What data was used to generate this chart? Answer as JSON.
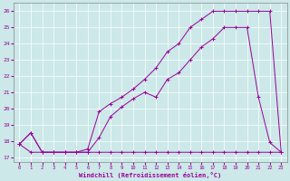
{
  "xlabel": "Windchill (Refroidissement éolien,°C)",
  "bg_color": "#cce8e8",
  "line_color": "#990099",
  "xlim": [
    -0.5,
    23.5
  ],
  "ylim": [
    16.7,
    26.5
  ],
  "yticks": [
    17,
    18,
    19,
    20,
    21,
    22,
    23,
    24,
    25,
    26
  ],
  "xticks": [
    0,
    1,
    2,
    3,
    4,
    5,
    6,
    7,
    8,
    9,
    10,
    11,
    12,
    13,
    14,
    15,
    16,
    17,
    18,
    19,
    20,
    21,
    22,
    23
  ],
  "line1_x": [
    0,
    1,
    2,
    3,
    4,
    5,
    6,
    7,
    8,
    9,
    10,
    11,
    12,
    13,
    14,
    15,
    16,
    17,
    18,
    19,
    20,
    21,
    22,
    23
  ],
  "line1_y": [
    17.8,
    17.3,
    17.3,
    17.3,
    17.3,
    17.3,
    17.3,
    17.3,
    17.3,
    17.3,
    17.3,
    17.3,
    17.3,
    17.3,
    17.3,
    17.3,
    17.3,
    17.3,
    17.3,
    17.3,
    17.3,
    17.3,
    17.3,
    17.3
  ],
  "line2_x": [
    0,
    1,
    2,
    3,
    4,
    5,
    6,
    7,
    8,
    9,
    10,
    11,
    12,
    13,
    14,
    15,
    16,
    17,
    18,
    19,
    20,
    21,
    22,
    23
  ],
  "line2_y": [
    17.8,
    18.5,
    17.3,
    17.3,
    17.3,
    17.3,
    17.3,
    18.2,
    19.5,
    20.1,
    20.6,
    21.0,
    20.7,
    21.8,
    22.2,
    23.0,
    23.8,
    24.3,
    25.0,
    25.0,
    25.0,
    20.7,
    17.9,
    17.3
  ],
  "line3_x": [
    0,
    1,
    2,
    3,
    4,
    5,
    6,
    7,
    8,
    9,
    10,
    11,
    12,
    13,
    14,
    15,
    16,
    17,
    18,
    19,
    20,
    21,
    22,
    23
  ],
  "line3_y": [
    17.8,
    18.5,
    17.3,
    17.3,
    17.3,
    17.3,
    17.5,
    19.8,
    20.3,
    20.7,
    21.2,
    21.8,
    22.5,
    23.5,
    24.0,
    25.0,
    25.5,
    26.0,
    26.0,
    26.0,
    26.0,
    26.0,
    26.0,
    17.3
  ]
}
